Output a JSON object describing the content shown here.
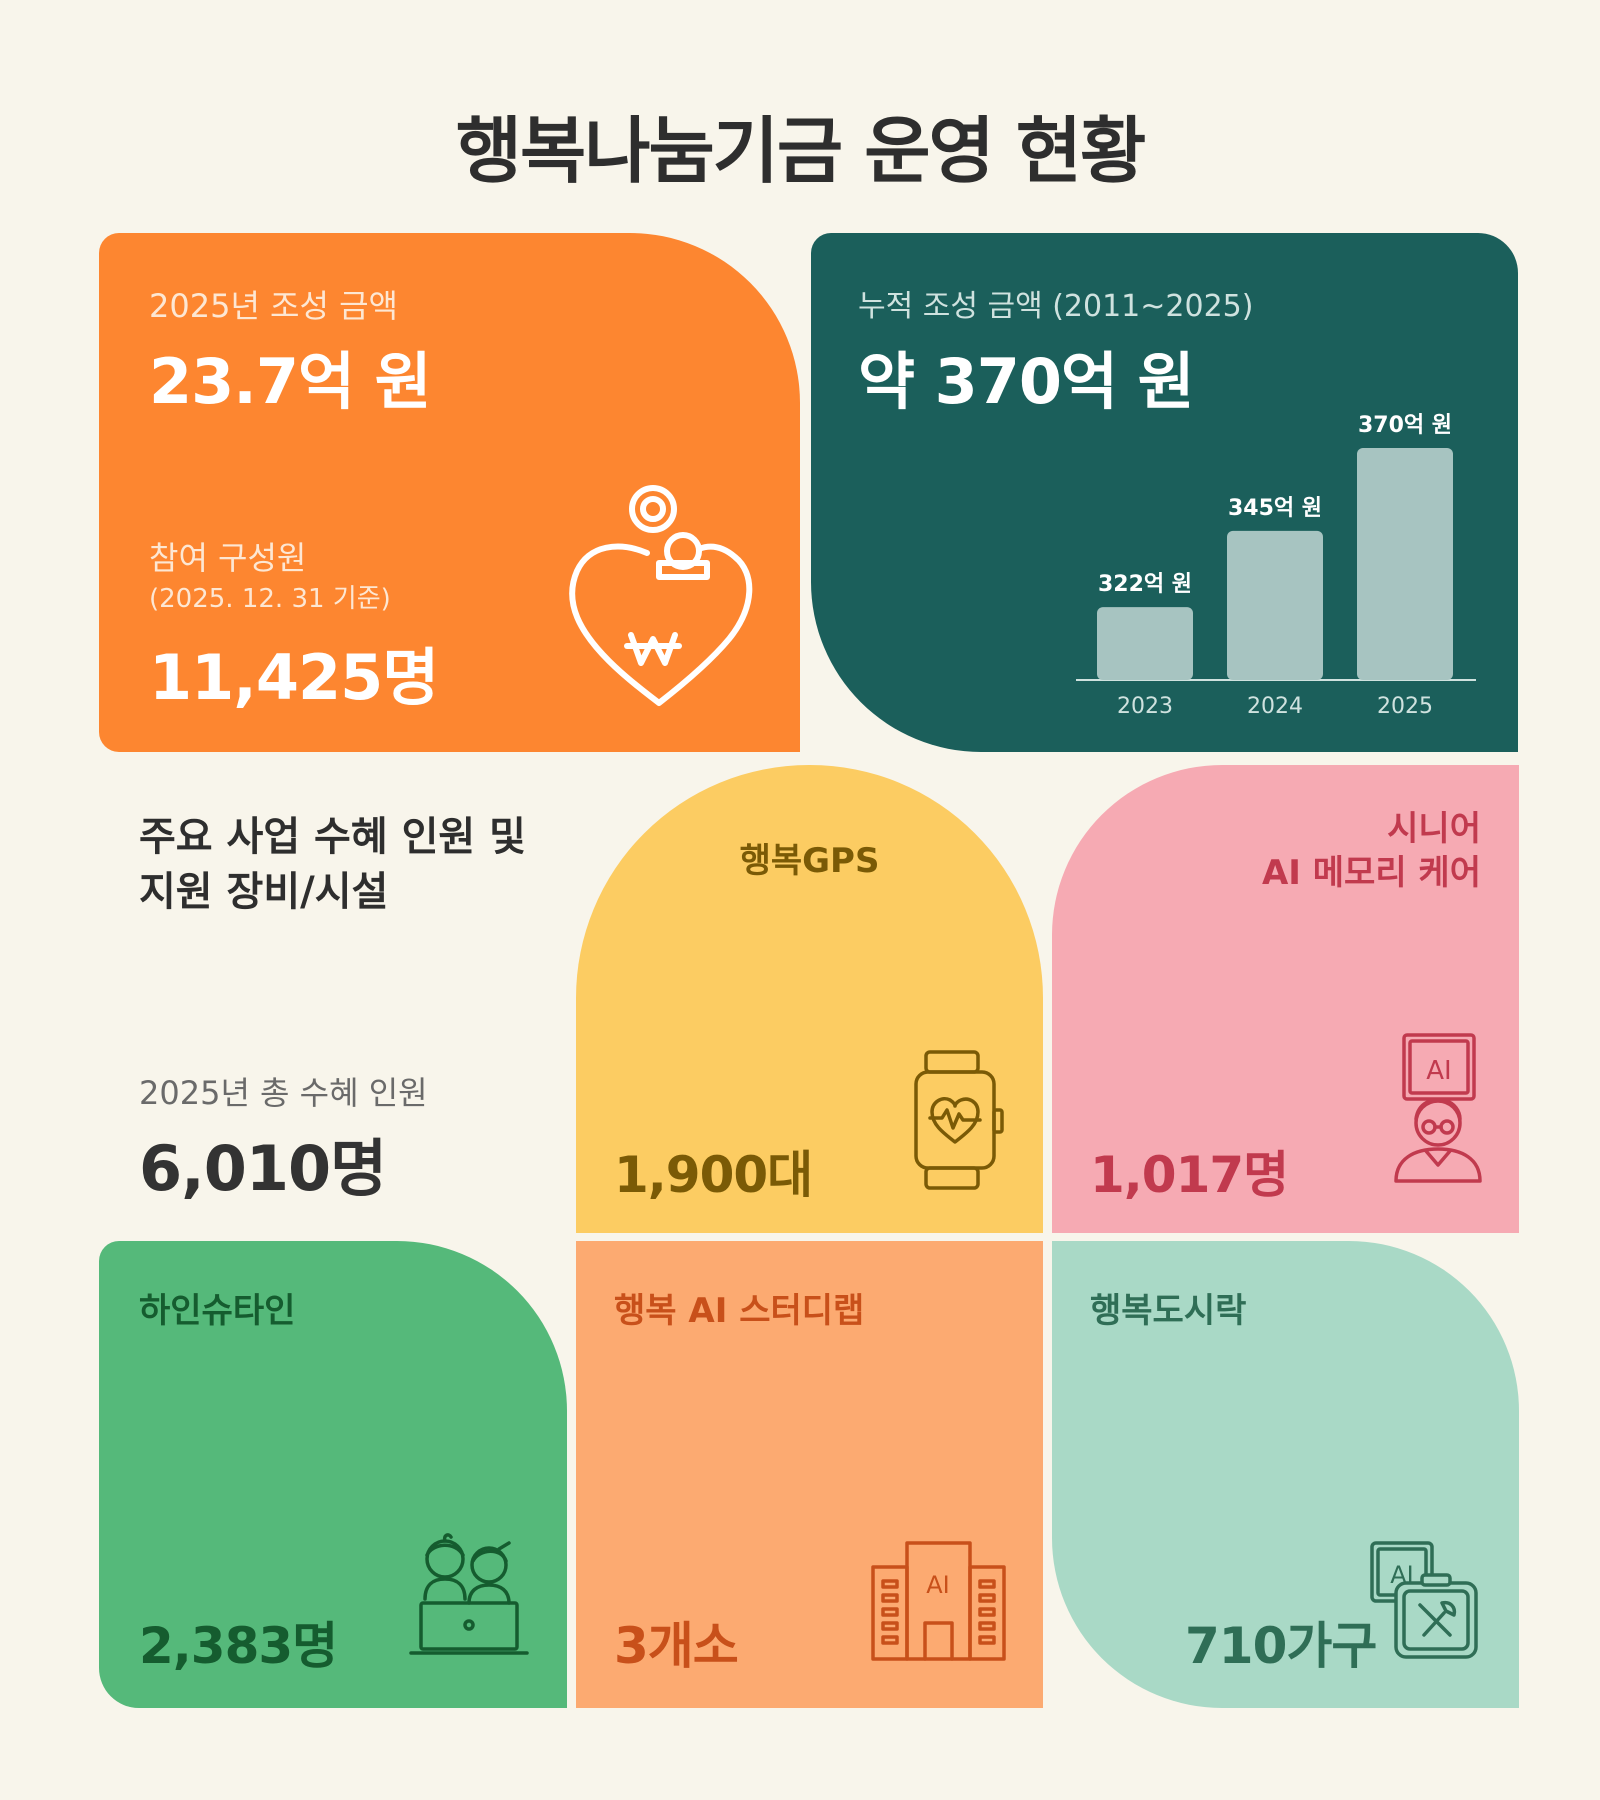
{
  "title": "행복나눔기금 운영 현황",
  "fund_2025": {
    "label": "2025년 조성 금액",
    "amount": "23.7억 원",
    "members_label": "참여 구성원",
    "members_date": "(2025. 12. 31 기준)",
    "members_count": "11,425명",
    "icon": "heart-coin-won-icon",
    "color": "#fd8630"
  },
  "cumulative": {
    "label": "누적 조성 금액 (2011~2025)",
    "amount": "약 370억 원",
    "color": "#1b5f5b"
  },
  "chart_data": {
    "type": "bar",
    "categories": [
      "2023",
      "2024",
      "2025"
    ],
    "values": [
      322,
      345,
      370
    ],
    "data_labels": [
      "322억 원",
      "345억 원",
      "370억 원"
    ],
    "bar_color": "#a7c4c1"
  },
  "section": {
    "heading_line1": "주요 사업 수혜 인원 및",
    "heading_line2": "지원 장비/시설",
    "total_label": "2025년 총 수혜 인원",
    "total_value": "6,010명"
  },
  "programs": {
    "gps": {
      "name": "행복GPS",
      "value": "1,900대",
      "icon": "smartwatch-heartbeat-icon",
      "color": "#fccc62"
    },
    "senior": {
      "name": "시니어\nAI 메모리 케어",
      "value": "1,017명",
      "icon": "senior-ai-icon",
      "color": "#f6aab3"
    },
    "heinstein": {
      "name": "하인슈타인",
      "value": "2,383명",
      "icon": "children-laptop-icon",
      "color": "#55b97a"
    },
    "studylab": {
      "name": "행복 AI 스터디랩",
      "value": "3개소",
      "icon": "ai-building-icon",
      "color": "#fcaa71"
    },
    "lunchbox": {
      "name": "행복도시락",
      "value": "710가구",
      "icon": "ai-lunchbox-icon",
      "color": "#a9d9c6"
    }
  }
}
